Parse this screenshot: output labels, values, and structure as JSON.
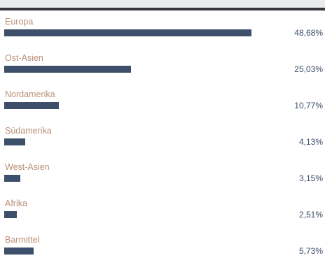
{
  "chart_data": {
    "type": "bar",
    "orientation": "horizontal",
    "categories": [
      "Europa",
      "Ost-Asien",
      "Nordamerika",
      "Südamerika",
      "West-Asien",
      "Afrika",
      "Barmittel"
    ],
    "values": [
      48.68,
      25.03,
      10.77,
      4.13,
      3.15,
      2.51,
      5.73
    ],
    "labels": [
      "48,68%",
      "25,03%",
      "10,77%",
      "4,13%",
      "3,15%",
      "2,51%",
      "5,73%"
    ],
    "unit": "%",
    "xlim": [
      0,
      100
    ],
    "grid": false,
    "legend": "none"
  },
  "colors": {
    "bar": "#3e4f6b",
    "category_text": "#b98f78",
    "value_text": "#3e4f6b",
    "top_band": "#e8ecef",
    "top_line": "#34383d"
  }
}
